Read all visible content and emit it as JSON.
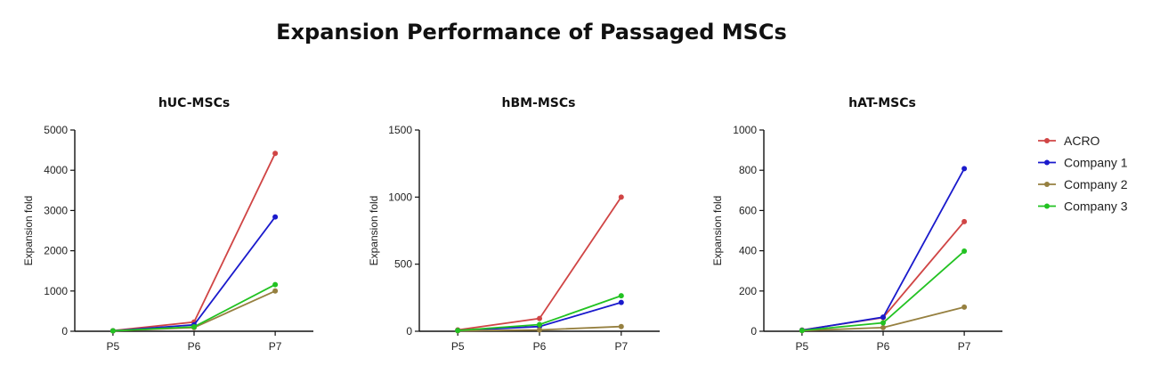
{
  "page_title": "Expansion Performance of Passaged MSCs",
  "legend": {
    "position": "right",
    "entries": [
      {
        "name": "ACRO",
        "color": "#d04545"
      },
      {
        "name": "Company 1",
        "color": "#1a1acc"
      },
      {
        "name": "Company 2",
        "color": "#968040"
      },
      {
        "name": "Company 3",
        "color": "#22c222"
      }
    ]
  },
  "chart_data": [
    {
      "type": "line",
      "title": "hUC-MSCs",
      "xlabel": "",
      "ylabel": "Expansion fold",
      "categories": [
        "P5",
        "P6",
        "P7"
      ],
      "ylim": [
        0,
        5000
      ],
      "yticks": [
        0,
        1000,
        2000,
        3000,
        4000,
        5000
      ],
      "grid": false,
      "series": [
        {
          "name": "ACRO",
          "color": "#d04545",
          "values": [
            15,
            230,
            4420
          ]
        },
        {
          "name": "Company 1",
          "color": "#1a1acc",
          "values": [
            10,
            160,
            2840
          ]
        },
        {
          "name": "Company 2",
          "color": "#968040",
          "values": [
            8,
            90,
            1000
          ]
        },
        {
          "name": "Company 3",
          "color": "#22c222",
          "values": [
            10,
            110,
            1160
          ]
        }
      ]
    },
    {
      "type": "line",
      "title": "hBM-MSCs",
      "xlabel": "",
      "ylabel": "Expansion fold",
      "categories": [
        "P5",
        "P6",
        "P7"
      ],
      "ylim": [
        0,
        1500
      ],
      "yticks": [
        0,
        500,
        1000,
        1500
      ],
      "grid": false,
      "series": [
        {
          "name": "ACRO",
          "color": "#d04545",
          "values": [
            10,
            95,
            1000
          ]
        },
        {
          "name": "Company 1",
          "color": "#1a1acc",
          "values": [
            5,
            35,
            215
          ]
        },
        {
          "name": "Company 2",
          "color": "#968040",
          "values": [
            3,
            10,
            35
          ]
        },
        {
          "name": "Company 3",
          "color": "#22c222",
          "values": [
            6,
            50,
            265
          ]
        }
      ]
    },
    {
      "type": "line",
      "title": "hAT-MSCs",
      "xlabel": "",
      "ylabel": "Expansion fold",
      "categories": [
        "P5",
        "P6",
        "P7"
      ],
      "ylim": [
        0,
        1000
      ],
      "yticks": [
        0,
        200,
        400,
        600,
        800,
        1000
      ],
      "grid": false,
      "series": [
        {
          "name": "ACRO",
          "color": "#d04545",
          "values": [
            6,
            68,
            545
          ]
        },
        {
          "name": "Company 1",
          "color": "#1a1acc",
          "values": [
            5,
            70,
            808
          ]
        },
        {
          "name": "Company 2",
          "color": "#968040",
          "values": [
            3,
            18,
            120
          ]
        },
        {
          "name": "Company 3",
          "color": "#22c222",
          "values": [
            4,
            42,
            398
          ]
        }
      ]
    }
  ]
}
